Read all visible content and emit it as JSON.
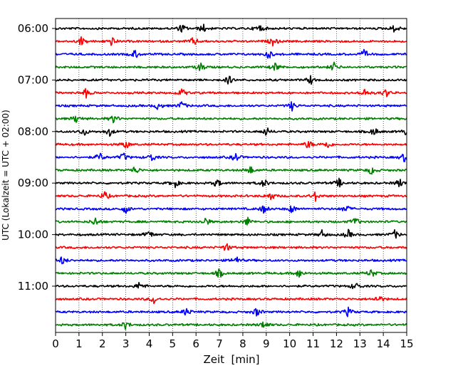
{
  "chart_data": {
    "type": "line",
    "title": "",
    "xlabel": "Zeit  [min]",
    "ylabel": "UTC (Lokalzeit = UTC + 02:00)",
    "xlim": [
      0,
      15
    ],
    "xticks": [
      0,
      1,
      2,
      3,
      4,
      5,
      6,
      7,
      8,
      9,
      10,
      11,
      12,
      13,
      14,
      15
    ],
    "y_axis_inverted": true,
    "trace_interval_min": 15,
    "yticks": [
      "06:00",
      "07:00",
      "08:00",
      "09:00",
      "10:00",
      "11:00"
    ],
    "grid": {
      "x": true,
      "y": false,
      "style": "dotted"
    },
    "color_cycle": [
      "#000000",
      "#ff0000",
      "#0000ff",
      "#008000"
    ],
    "traces": [
      {
        "start": "06:00",
        "color": "#000000",
        "events": [
          5.4,
          6.3,
          8.7,
          14.5
        ]
      },
      {
        "start": "06:15",
        "color": "#ff0000",
        "events": [
          1.1,
          2.4,
          5.9,
          9.3
        ]
      },
      {
        "start": "06:30",
        "color": "#0000ff",
        "events": [
          3.4,
          9.1,
          13.2
        ]
      },
      {
        "start": "06:45",
        "color": "#008000",
        "events": [
          6.2,
          9.4,
          11.9
        ]
      },
      {
        "start": "07:00",
        "color": "#000000",
        "events": [
          7.4,
          10.9
        ]
      },
      {
        "start": "07:15",
        "color": "#ff0000",
        "events": [
          1.3,
          5.4,
          13.2,
          14.1
        ]
      },
      {
        "start": "07:30",
        "color": "#0000ff",
        "events": [
          4.4,
          5.4,
          10.1
        ]
      },
      {
        "start": "07:45",
        "color": "#008000",
        "events": [
          0.9,
          2.5
        ]
      },
      {
        "start": "08:00",
        "color": "#000000",
        "events": [
          1.2,
          2.3,
          9.0,
          13.6,
          15.0
        ]
      },
      {
        "start": "08:15",
        "color": "#ff0000",
        "events": [
          3.0,
          10.8,
          11.6
        ]
      },
      {
        "start": "08:30",
        "color": "#0000ff",
        "events": [
          1.9,
          2.9,
          4.1,
          7.7,
          14.9
        ]
      },
      {
        "start": "08:45",
        "color": "#008000",
        "events": [
          3.4,
          8.3,
          13.5
        ]
      },
      {
        "start": "09:00",
        "color": "#000000",
        "events": [
          5.1,
          6.9,
          8.9,
          12.1,
          14.7
        ]
      },
      {
        "start": "09:15",
        "color": "#ff0000",
        "events": [
          2.1,
          9.2,
          11.1
        ]
      },
      {
        "start": "09:30",
        "color": "#0000ff",
        "events": [
          3.0,
          8.9,
          10.1,
          12.4
        ]
      },
      {
        "start": "09:45",
        "color": "#008000",
        "events": [
          1.7,
          6.4,
          8.2,
          12.8
        ]
      },
      {
        "start": "10:00",
        "color": "#000000",
        "events": [
          4.0,
          11.4,
          12.5,
          14.5
        ]
      },
      {
        "start": "10:15",
        "color": "#ff0000",
        "events": [
          7.3
        ]
      },
      {
        "start": "10:30",
        "color": "#0000ff",
        "events": [
          0.3,
          7.7
        ]
      },
      {
        "start": "10:45",
        "color": "#008000",
        "events": [
          7.0,
          10.4,
          13.5
        ]
      },
      {
        "start": "11:00",
        "color": "#000000",
        "events": [
          3.6,
          12.8
        ]
      },
      {
        "start": "11:15",
        "color": "#ff0000",
        "events": [
          4.2,
          13.8
        ]
      },
      {
        "start": "11:30",
        "color": "#0000ff",
        "events": [
          5.6,
          8.6,
          12.5
        ]
      },
      {
        "start": "11:45",
        "color": "#008000",
        "events": [
          3.0,
          8.9
        ]
      }
    ]
  }
}
